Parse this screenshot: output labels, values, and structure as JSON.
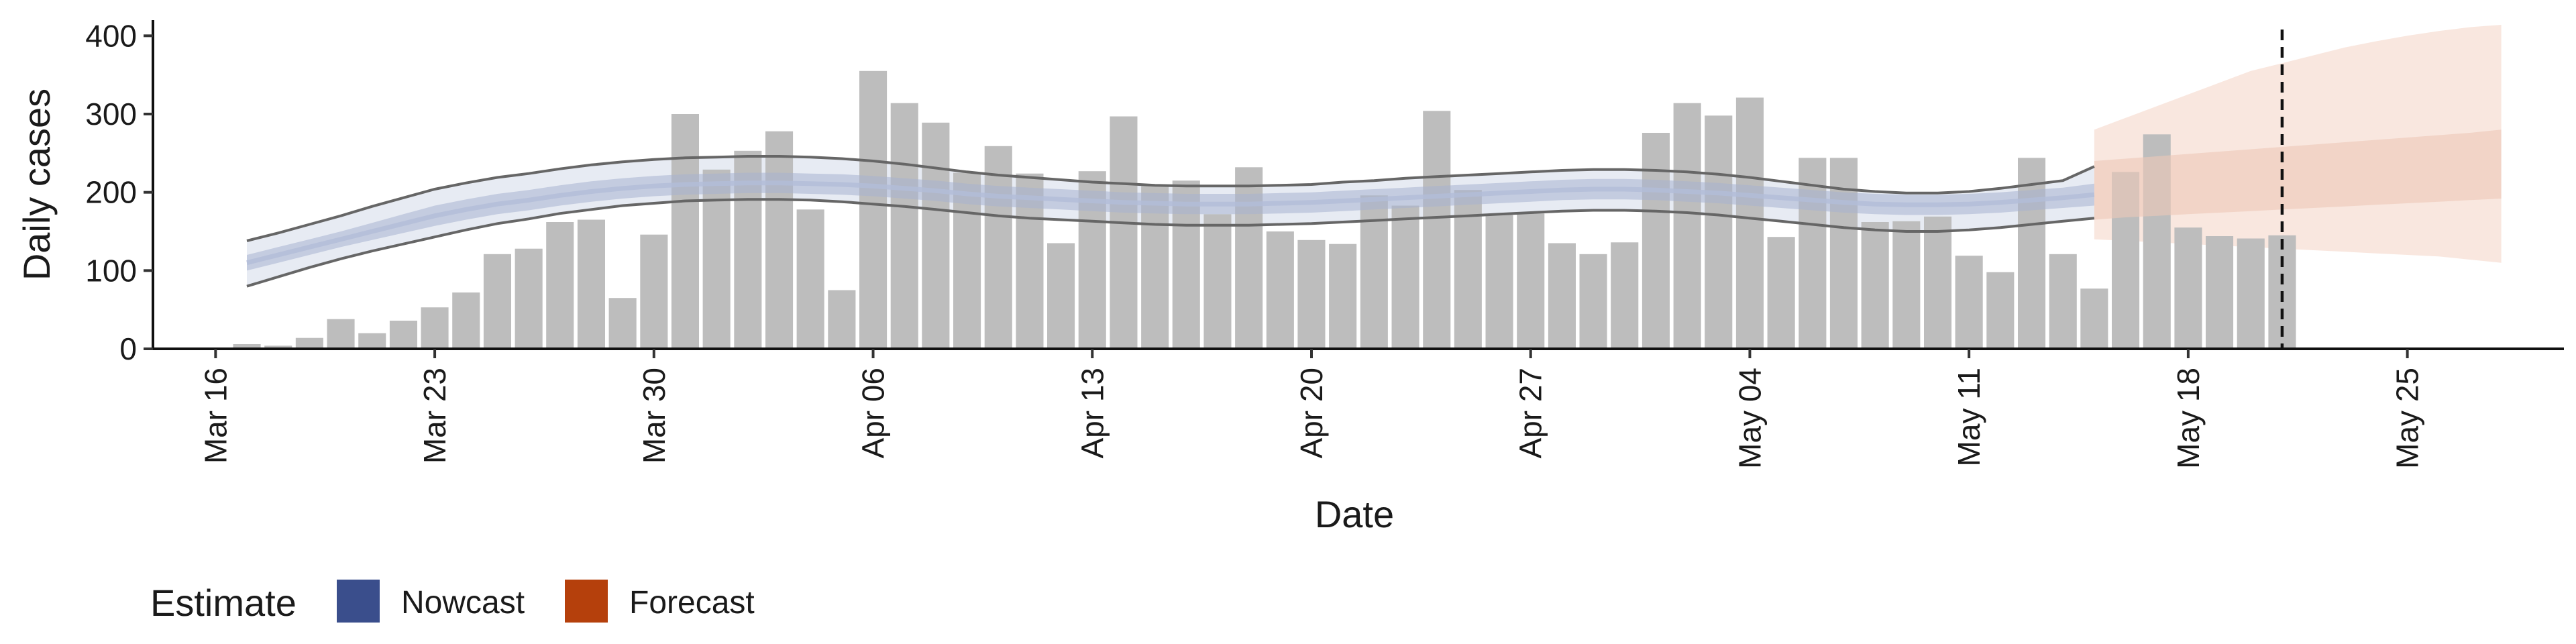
{
  "chart_data": {
    "type": "bar",
    "xlabel": "Date",
    "ylabel": "Daily cases",
    "ylim": [
      0,
      420
    ],
    "xlim": [
      "2020-03-14",
      "2020-05-30"
    ],
    "y_ticks": [
      0,
      100,
      200,
      300,
      400
    ],
    "x_ticks": [
      {
        "date": "2020-03-16",
        "label": "Mar 16"
      },
      {
        "date": "2020-03-23",
        "label": "Mar 23"
      },
      {
        "date": "2020-03-30",
        "label": "Mar 30"
      },
      {
        "date": "2020-04-06",
        "label": "Apr 06"
      },
      {
        "date": "2020-04-13",
        "label": "Apr 13"
      },
      {
        "date": "2020-04-20",
        "label": "Apr 20"
      },
      {
        "date": "2020-04-27",
        "label": "Apr 27"
      },
      {
        "date": "2020-05-04",
        "label": "May 04"
      },
      {
        "date": "2020-05-11",
        "label": "May 11"
      },
      {
        "date": "2020-05-18",
        "label": "May 18"
      },
      {
        "date": "2020-05-25",
        "label": "May 25"
      }
    ],
    "bars": {
      "start_date": "2020-03-17",
      "values": [
        6,
        4,
        14,
        38,
        20,
        36,
        53,
        72,
        121,
        128,
        162,
        165,
        65,
        146,
        300,
        229,
        253,
        278,
        178,
        75,
        355,
        314,
        289,
        225,
        259,
        224,
        135,
        227,
        297,
        208,
        215,
        172,
        232,
        150,
        139,
        134,
        196,
        183,
        304,
        203,
        171,
        173,
        135,
        121,
        136,
        276,
        314,
        298,
        321,
        143,
        244,
        244,
        162,
        163,
        169,
        119,
        98,
        244,
        121,
        77,
        226,
        274,
        155,
        144,
        141,
        145
      ],
      "color": "#bdbdbd"
    },
    "nowcast": {
      "start_date": "2020-03-17",
      "median": [
        110,
        120,
        130,
        140,
        150,
        160,
        170,
        178,
        185,
        190,
        196,
        201,
        205,
        208,
        210,
        211,
        212,
        212,
        211,
        210,
        208,
        205,
        202,
        198,
        195,
        193,
        191,
        189,
        187,
        186,
        185,
        185,
        185,
        186,
        187,
        189,
        191,
        193,
        195,
        197,
        199,
        201,
        203,
        204,
        204,
        203,
        201,
        199,
        196,
        193,
        190,
        187,
        185,
        184,
        184,
        185,
        187,
        190,
        193,
        197
      ],
      "inner": [
        [
          100,
          120
        ],
        [
          110,
          130
        ],
        [
          120,
          140
        ],
        [
          130,
          150
        ],
        [
          139,
          161
        ],
        [
          148,
          172
        ],
        [
          157,
          183
        ],
        [
          165,
          191
        ],
        [
          172,
          198
        ],
        [
          177,
          203
        ],
        [
          183,
          209
        ],
        [
          188,
          214
        ],
        [
          192,
          218
        ],
        [
          195,
          221
        ],
        [
          197,
          223
        ],
        [
          198,
          224
        ],
        [
          199,
          225
        ],
        [
          199,
          225
        ],
        [
          198,
          224
        ],
        [
          197,
          223
        ],
        [
          195,
          221
        ],
        [
          192,
          218
        ],
        [
          189,
          215
        ],
        [
          185,
          211
        ],
        [
          182,
          208
        ],
        [
          180,
          206
        ],
        [
          178,
          204
        ],
        [
          176,
          202
        ],
        [
          174,
          200
        ],
        [
          173,
          199
        ],
        [
          172,
          198
        ],
        [
          172,
          198
        ],
        [
          172,
          198
        ],
        [
          173,
          199
        ],
        [
          174,
          200
        ],
        [
          176,
          202
        ],
        [
          178,
          204
        ],
        [
          180,
          206
        ],
        [
          182,
          208
        ],
        [
          184,
          210
        ],
        [
          186,
          212
        ],
        [
          188,
          214
        ],
        [
          190,
          216
        ],
        [
          191,
          217
        ],
        [
          191,
          217
        ],
        [
          190,
          216
        ],
        [
          188,
          214
        ],
        [
          186,
          212
        ],
        [
          183,
          209
        ],
        [
          180,
          206
        ],
        [
          177,
          203
        ],
        [
          174,
          200
        ],
        [
          172,
          198
        ],
        [
          171,
          197
        ],
        [
          171,
          197
        ],
        [
          172,
          198
        ],
        [
          174,
          200
        ],
        [
          177,
          203
        ],
        [
          180,
          206
        ],
        [
          183,
          211
        ]
      ],
      "outer": [
        [
          80,
          138
        ],
        [
          92,
          148
        ],
        [
          104,
          159
        ],
        [
          115,
          170
        ],
        [
          125,
          182
        ],
        [
          134,
          193
        ],
        [
          143,
          204
        ],
        [
          152,
          212
        ],
        [
          160,
          219
        ],
        [
          166,
          224
        ],
        [
          173,
          230
        ],
        [
          178,
          235
        ],
        [
          183,
          239
        ],
        [
          186,
          242
        ],
        [
          189,
          244
        ],
        [
          190,
          245
        ],
        [
          191,
          246
        ],
        [
          191,
          246
        ],
        [
          190,
          245
        ],
        [
          188,
          243
        ],
        [
          185,
          240
        ],
        [
          182,
          236
        ],
        [
          178,
          231
        ],
        [
          174,
          226
        ],
        [
          170,
          222
        ],
        [
          167,
          219
        ],
        [
          165,
          216
        ],
        [
          163,
          213
        ],
        [
          161,
          211
        ],
        [
          159,
          209
        ],
        [
          158,
          208
        ],
        [
          158,
          208
        ],
        [
          158,
          208
        ],
        [
          159,
          209
        ],
        [
          160,
          210
        ],
        [
          162,
          213
        ],
        [
          164,
          215
        ],
        [
          166,
          218
        ],
        [
          168,
          220
        ],
        [
          170,
          222
        ],
        [
          172,
          224
        ],
        [
          174,
          226
        ],
        [
          176,
          228
        ],
        [
          177,
          229
        ],
        [
          177,
          229
        ],
        [
          176,
          228
        ],
        [
          174,
          226
        ],
        [
          171,
          223
        ],
        [
          167,
          219
        ],
        [
          163,
          214
        ],
        [
          159,
          209
        ],
        [
          155,
          204
        ],
        [
          152,
          201
        ],
        [
          150,
          199
        ],
        [
          150,
          199
        ],
        [
          152,
          201
        ],
        [
          155,
          205
        ],
        [
          159,
          210
        ],
        [
          163,
          215
        ],
        [
          167,
          233
        ]
      ],
      "band_color_inner": "#a8b2cf",
      "band_color_outer": "#dde2ee",
      "line_color": "#b3bdd8",
      "bound_line_color": "#666666"
    },
    "forecast": {
      "start_date": "2020-05-15",
      "median": [
        200,
        202,
        205,
        208,
        210,
        212,
        214,
        216,
        218,
        220,
        222,
        224,
        226,
        228
      ],
      "inner": [
        [
          165,
          240
        ],
        [
          168,
          243
        ],
        [
          170,
          246
        ],
        [
          172,
          249
        ],
        [
          174,
          252
        ],
        [
          176,
          255
        ],
        [
          178,
          258
        ],
        [
          180,
          261
        ],
        [
          182,
          264
        ],
        [
          184,
          267
        ],
        [
          186,
          270
        ],
        [
          188,
          273
        ],
        [
          190,
          276
        ],
        [
          192,
          280
        ]
      ],
      "outer": [
        [
          140,
          280
        ],
        [
          138,
          295
        ],
        [
          136,
          310
        ],
        [
          134,
          325
        ],
        [
          132,
          340
        ],
        [
          130,
          355
        ],
        [
          128,
          365
        ],
        [
          126,
          375
        ],
        [
          124,
          385
        ],
        [
          122,
          393
        ],
        [
          120,
          400
        ],
        [
          118,
          406
        ],
        [
          114,
          411
        ],
        [
          110,
          414
        ]
      ],
      "band_color_inner": "#ecc8b8",
      "band_color_outer": "#f8e4db"
    },
    "vline": {
      "date": "2020-05-21",
      "style": "dashed"
    },
    "legend": {
      "title": "Estimate",
      "placement": "bottom-left",
      "entries": [
        {
          "label": "Nowcast",
          "color": "#3a4e8c"
        },
        {
          "label": "Forecast",
          "color": "#b5400c"
        }
      ]
    }
  }
}
